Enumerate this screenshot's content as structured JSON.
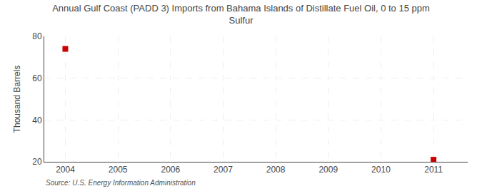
{
  "chart_data": {
    "type": "scatter",
    "title": "Annual Gulf Coast (PADD 3) Imports from Bahama Islands of Distillate Fuel Oil, 0 to 15 ppm\nSulfur",
    "ylabel": "Thousand Barrels",
    "source": "Source: U.S. Energy Information Administration",
    "x": [
      2004,
      2011
    ],
    "values": [
      74,
      21
    ],
    "color": "#cc0000",
    "marker": "square",
    "xlim": [
      2003.6,
      2011.65
    ],
    "ylim": [
      20,
      80
    ],
    "xticks": [
      2004,
      2005,
      2006,
      2007,
      2008,
      2009,
      2010,
      2011
    ],
    "yticks": [
      20,
      40,
      60,
      80
    ],
    "grid": true
  }
}
